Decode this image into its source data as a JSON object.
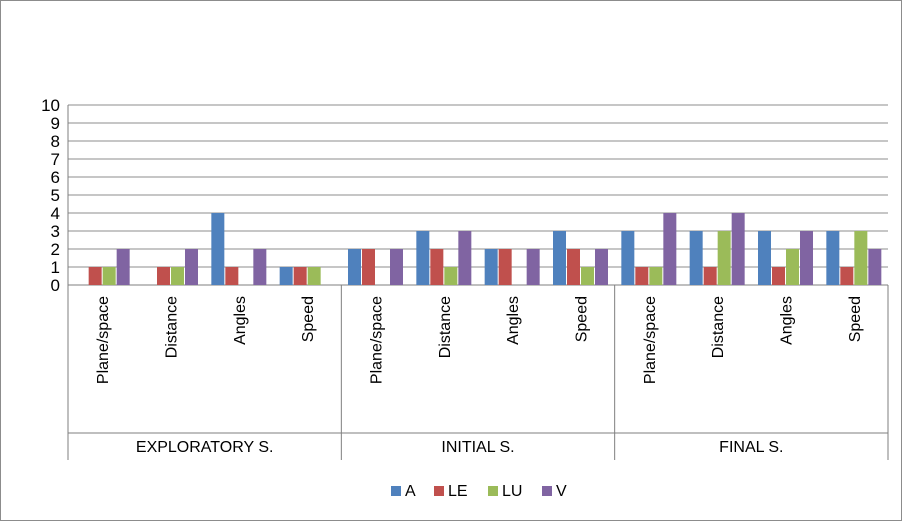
{
  "chart_data": {
    "type": "bar",
    "title": "",
    "xlabel": "",
    "ylabel": "",
    "ylim": [
      0,
      10
    ],
    "yticks": [
      0,
      1,
      2,
      3,
      4,
      5,
      6,
      7,
      8,
      9,
      10
    ],
    "grid": true,
    "legend_position": "bottom",
    "groups": [
      {
        "label": "EXPLORATORY S.",
        "categories": [
          "Plane/space",
          "Distance",
          "Angles",
          "Speed"
        ]
      },
      {
        "label": "INITIAL S.",
        "categories": [
          "Plane/space",
          "Distance",
          "Angles",
          "Speed"
        ]
      },
      {
        "label": "FINAL S.",
        "categories": [
          "Plane/space",
          "Distance",
          "Angles",
          "Speed"
        ]
      }
    ],
    "series": [
      {
        "name": "A",
        "color": "#4f81bd",
        "values": [
          0,
          0,
          4,
          1,
          2,
          3,
          2,
          3,
          3,
          3,
          3,
          3
        ]
      },
      {
        "name": "LE",
        "color": "#c0504d",
        "values": [
          1,
          1,
          1,
          1,
          2,
          2,
          2,
          2,
          1,
          1,
          1,
          1
        ]
      },
      {
        "name": "LU",
        "color": "#9bbb59",
        "values": [
          1,
          1,
          0,
          1,
          0,
          1,
          0,
          1,
          1,
          3,
          2,
          3
        ]
      },
      {
        "name": "V",
        "color": "#8064a2",
        "values": [
          2,
          2,
          2,
          0,
          2,
          3,
          2,
          2,
          4,
          4,
          3,
          2
        ]
      }
    ]
  }
}
